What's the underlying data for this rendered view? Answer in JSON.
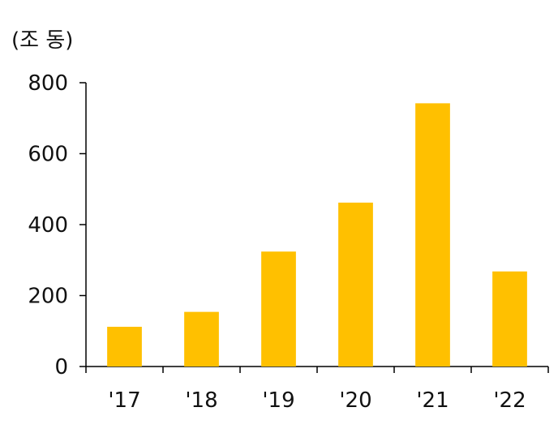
{
  "chart_data": {
    "type": "bar",
    "unit_label": "(조 동)",
    "categories": [
      "'17",
      "'18",
      "'19",
      "'20",
      "'21",
      "'22"
    ],
    "values": [
      112,
      154,
      324,
      462,
      742,
      268
    ],
    "ylim": [
      0,
      800
    ],
    "yticks": [
      0,
      200,
      400,
      600,
      800
    ],
    "ytick_labels": [
      "0",
      "200",
      "400",
      "600",
      "800"
    ],
    "bar_color": "#FFC000",
    "axis_color": "#000000",
    "grid": false,
    "legend": "none"
  }
}
